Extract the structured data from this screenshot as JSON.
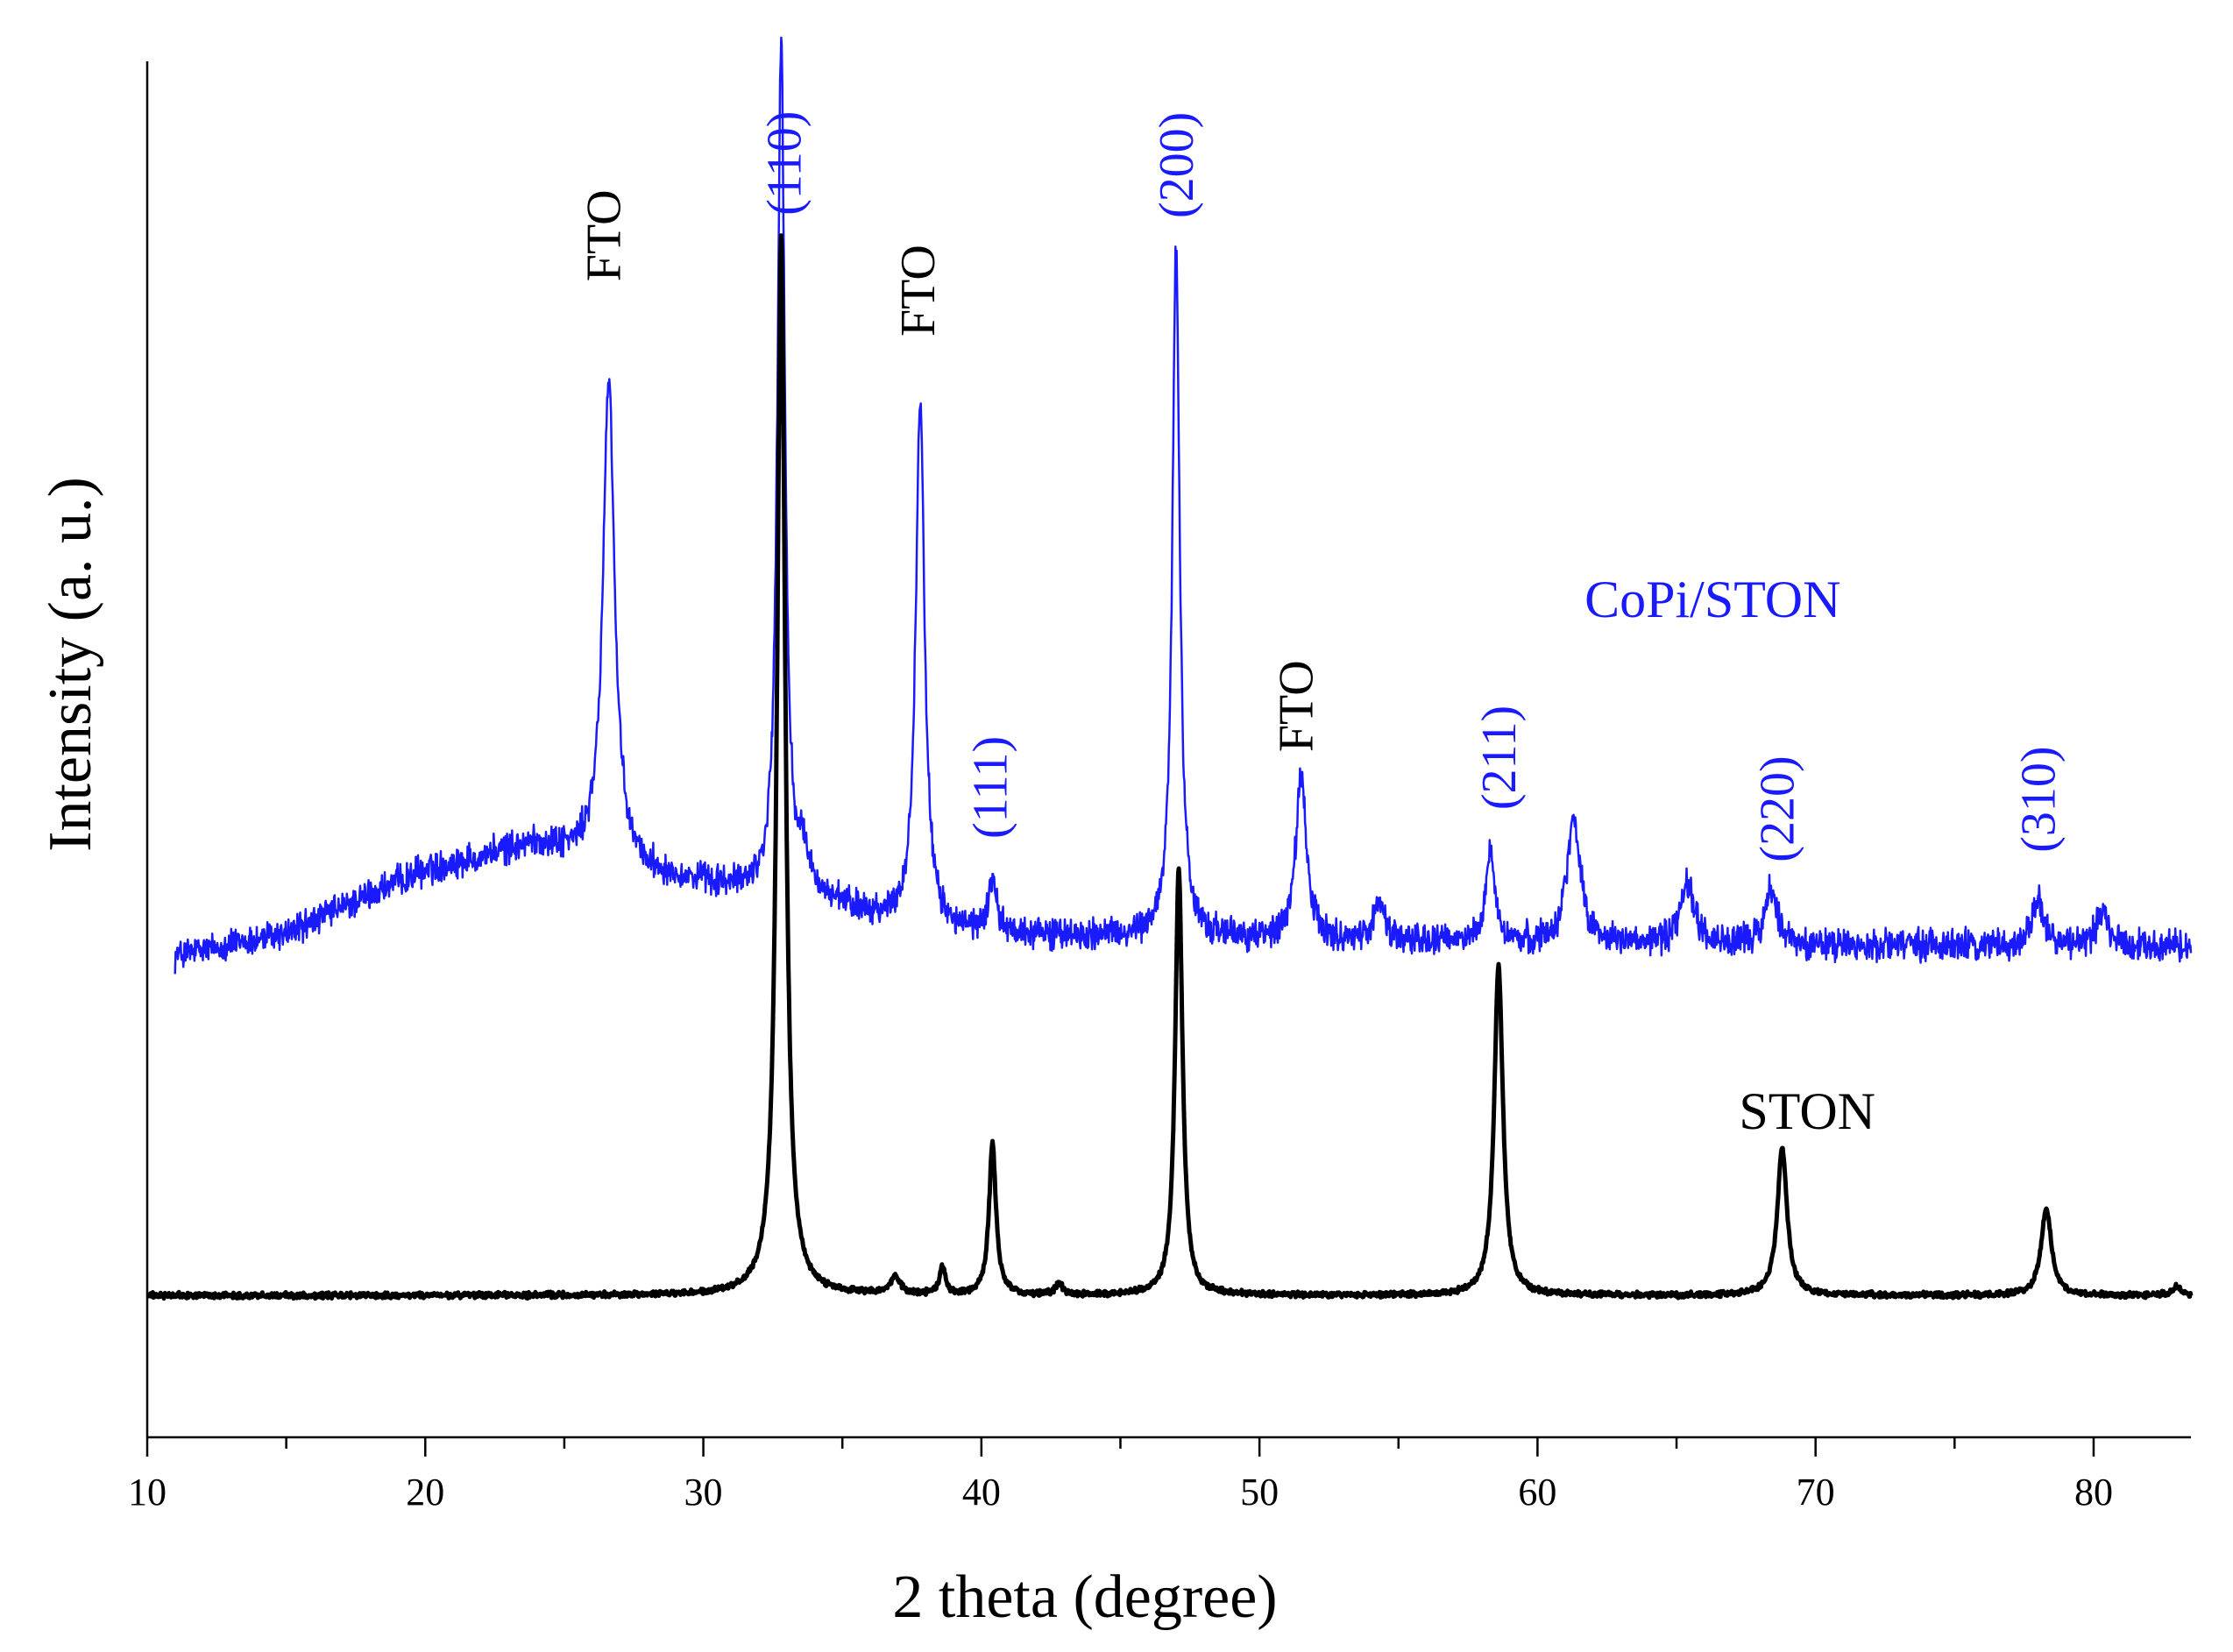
{
  "chart_data": {
    "type": "line",
    "xlabel": "2 theta (degree)",
    "ylabel": "Intensity (a. u.)",
    "xlim": [
      10,
      83.5
    ],
    "ylim": [
      0,
      100
    ],
    "x_ticks": [
      10,
      20,
      30,
      40,
      50,
      60,
      70,
      80
    ],
    "x_tick_labels": [
      "10",
      "20",
      "30",
      "40",
      "50",
      "60",
      "70",
      "80"
    ],
    "y_ticks_shown": false,
    "grid": false,
    "colors": {
      "CoPi/STON": "#1a1aff",
      "STON": "#000000"
    },
    "series": [
      {
        "name": "CoPi/STON",
        "x_range": [
          11,
          83.5
        ],
        "baseline_points": [
          [
            11,
            35.0
          ],
          [
            15,
            36.6
          ],
          [
            20,
            41.2
          ],
          [
            24,
            43.1
          ],
          [
            26,
            42.0
          ],
          [
            28,
            41.0
          ],
          [
            31,
            39.8
          ],
          [
            34,
            39.0
          ],
          [
            38,
            36.8
          ],
          [
            45,
            36.3
          ],
          [
            60,
            35.8
          ],
          [
            83.5,
            35.7
          ]
        ],
        "noise": 1.4,
        "peaks": [
          {
            "x": 26.6,
            "height": 35.4,
            "width": 0.5
          },
          {
            "x": 32.8,
            "height": 62.0,
            "width": 0.32
          },
          {
            "x": 33.6,
            "height": 2.5,
            "width": 0.5
          },
          {
            "x": 37.8,
            "height": 39.0,
            "width": 0.38
          },
          {
            "x": 40.4,
            "height": 4.0,
            "width": 0.3
          },
          {
            "x": 47.0,
            "height": 50.0,
            "width": 0.32
          },
          {
            "x": 51.5,
            "height": 12.0,
            "width": 0.45
          },
          {
            "x": 54.3,
            "height": 3.0,
            "width": 0.45
          },
          {
            "x": 58.3,
            "height": 6.5,
            "width": 0.4
          },
          {
            "x": 61.3,
            "height": 9.0,
            "width": 0.6
          },
          {
            "x": 65.4,
            "height": 4.5,
            "width": 0.6
          },
          {
            "x": 68.4,
            "height": 4.0,
            "width": 0.5
          },
          {
            "x": 78.0,
            "height": 3.5,
            "width": 0.5
          },
          {
            "x": 80.3,
            "height": 2.5,
            "width": 0.5
          }
        ]
      },
      {
        "name": "STON",
        "x_range": [
          10,
          83.5
        ],
        "baseline_points": [
          [
            10,
            10.3
          ],
          [
            83.5,
            10.3
          ]
        ],
        "noise": 0.25,
        "peaks": [
          {
            "x": 32.8,
            "height": 77.0,
            "width": 0.35
          },
          {
            "x": 36.9,
            "height": 1.3,
            "width": 0.4
          },
          {
            "x": 38.6,
            "height": 2.0,
            "width": 0.25
          },
          {
            "x": 40.4,
            "height": 11.0,
            "width": 0.3
          },
          {
            "x": 42.8,
            "height": 0.8,
            "width": 0.3
          },
          {
            "x": 47.1,
            "height": 31.0,
            "width": 0.32
          },
          {
            "x": 58.6,
            "height": 24.0,
            "width": 0.38
          },
          {
            "x": 68.8,
            "height": 10.7,
            "width": 0.42
          },
          {
            "x": 78.3,
            "height": 6.3,
            "width": 0.45
          },
          {
            "x": 83.0,
            "height": 0.6,
            "width": 0.4
          }
        ]
      }
    ],
    "annotations": [
      {
        "text": "FTO",
        "x": 26.6,
        "y": 84.0,
        "color": "#000000",
        "rotate": true
      },
      {
        "text": "(110)",
        "x": 33.1,
        "y": 88.8,
        "color": "#1a1aff",
        "rotate": true
      },
      {
        "text": "FTO",
        "x": 37.9,
        "y": 80.0,
        "color": "#000000",
        "rotate": true
      },
      {
        "text": "(111)",
        "x": 40.5,
        "y": 43.5,
        "color": "#1a1aff",
        "rotate": true
      },
      {
        "text": "(200)",
        "x": 47.2,
        "y": 88.6,
        "color": "#1a1aff",
        "rotate": true
      },
      {
        "text": "FTO",
        "x": 51.5,
        "y": 49.8,
        "color": "#000000",
        "rotate": true
      },
      {
        "text": "(211)",
        "x": 58.8,
        "y": 45.6,
        "color": "#1a1aff",
        "rotate": true
      },
      {
        "text": "(220)",
        "x": 68.8,
        "y": 41.8,
        "color": "#1a1aff",
        "rotate": true
      },
      {
        "text": "(310)",
        "x": 78.2,
        "y": 42.5,
        "color": "#1a1aff",
        "rotate": true
      }
    ],
    "series_labels": [
      {
        "text": "CoPi/STON",
        "x": 66.3,
        "y": 60.5,
        "color": "#1a1aff"
      },
      {
        "text": "STON",
        "x": 69.7,
        "y": 23.3,
        "color": "#000000"
      }
    ]
  }
}
